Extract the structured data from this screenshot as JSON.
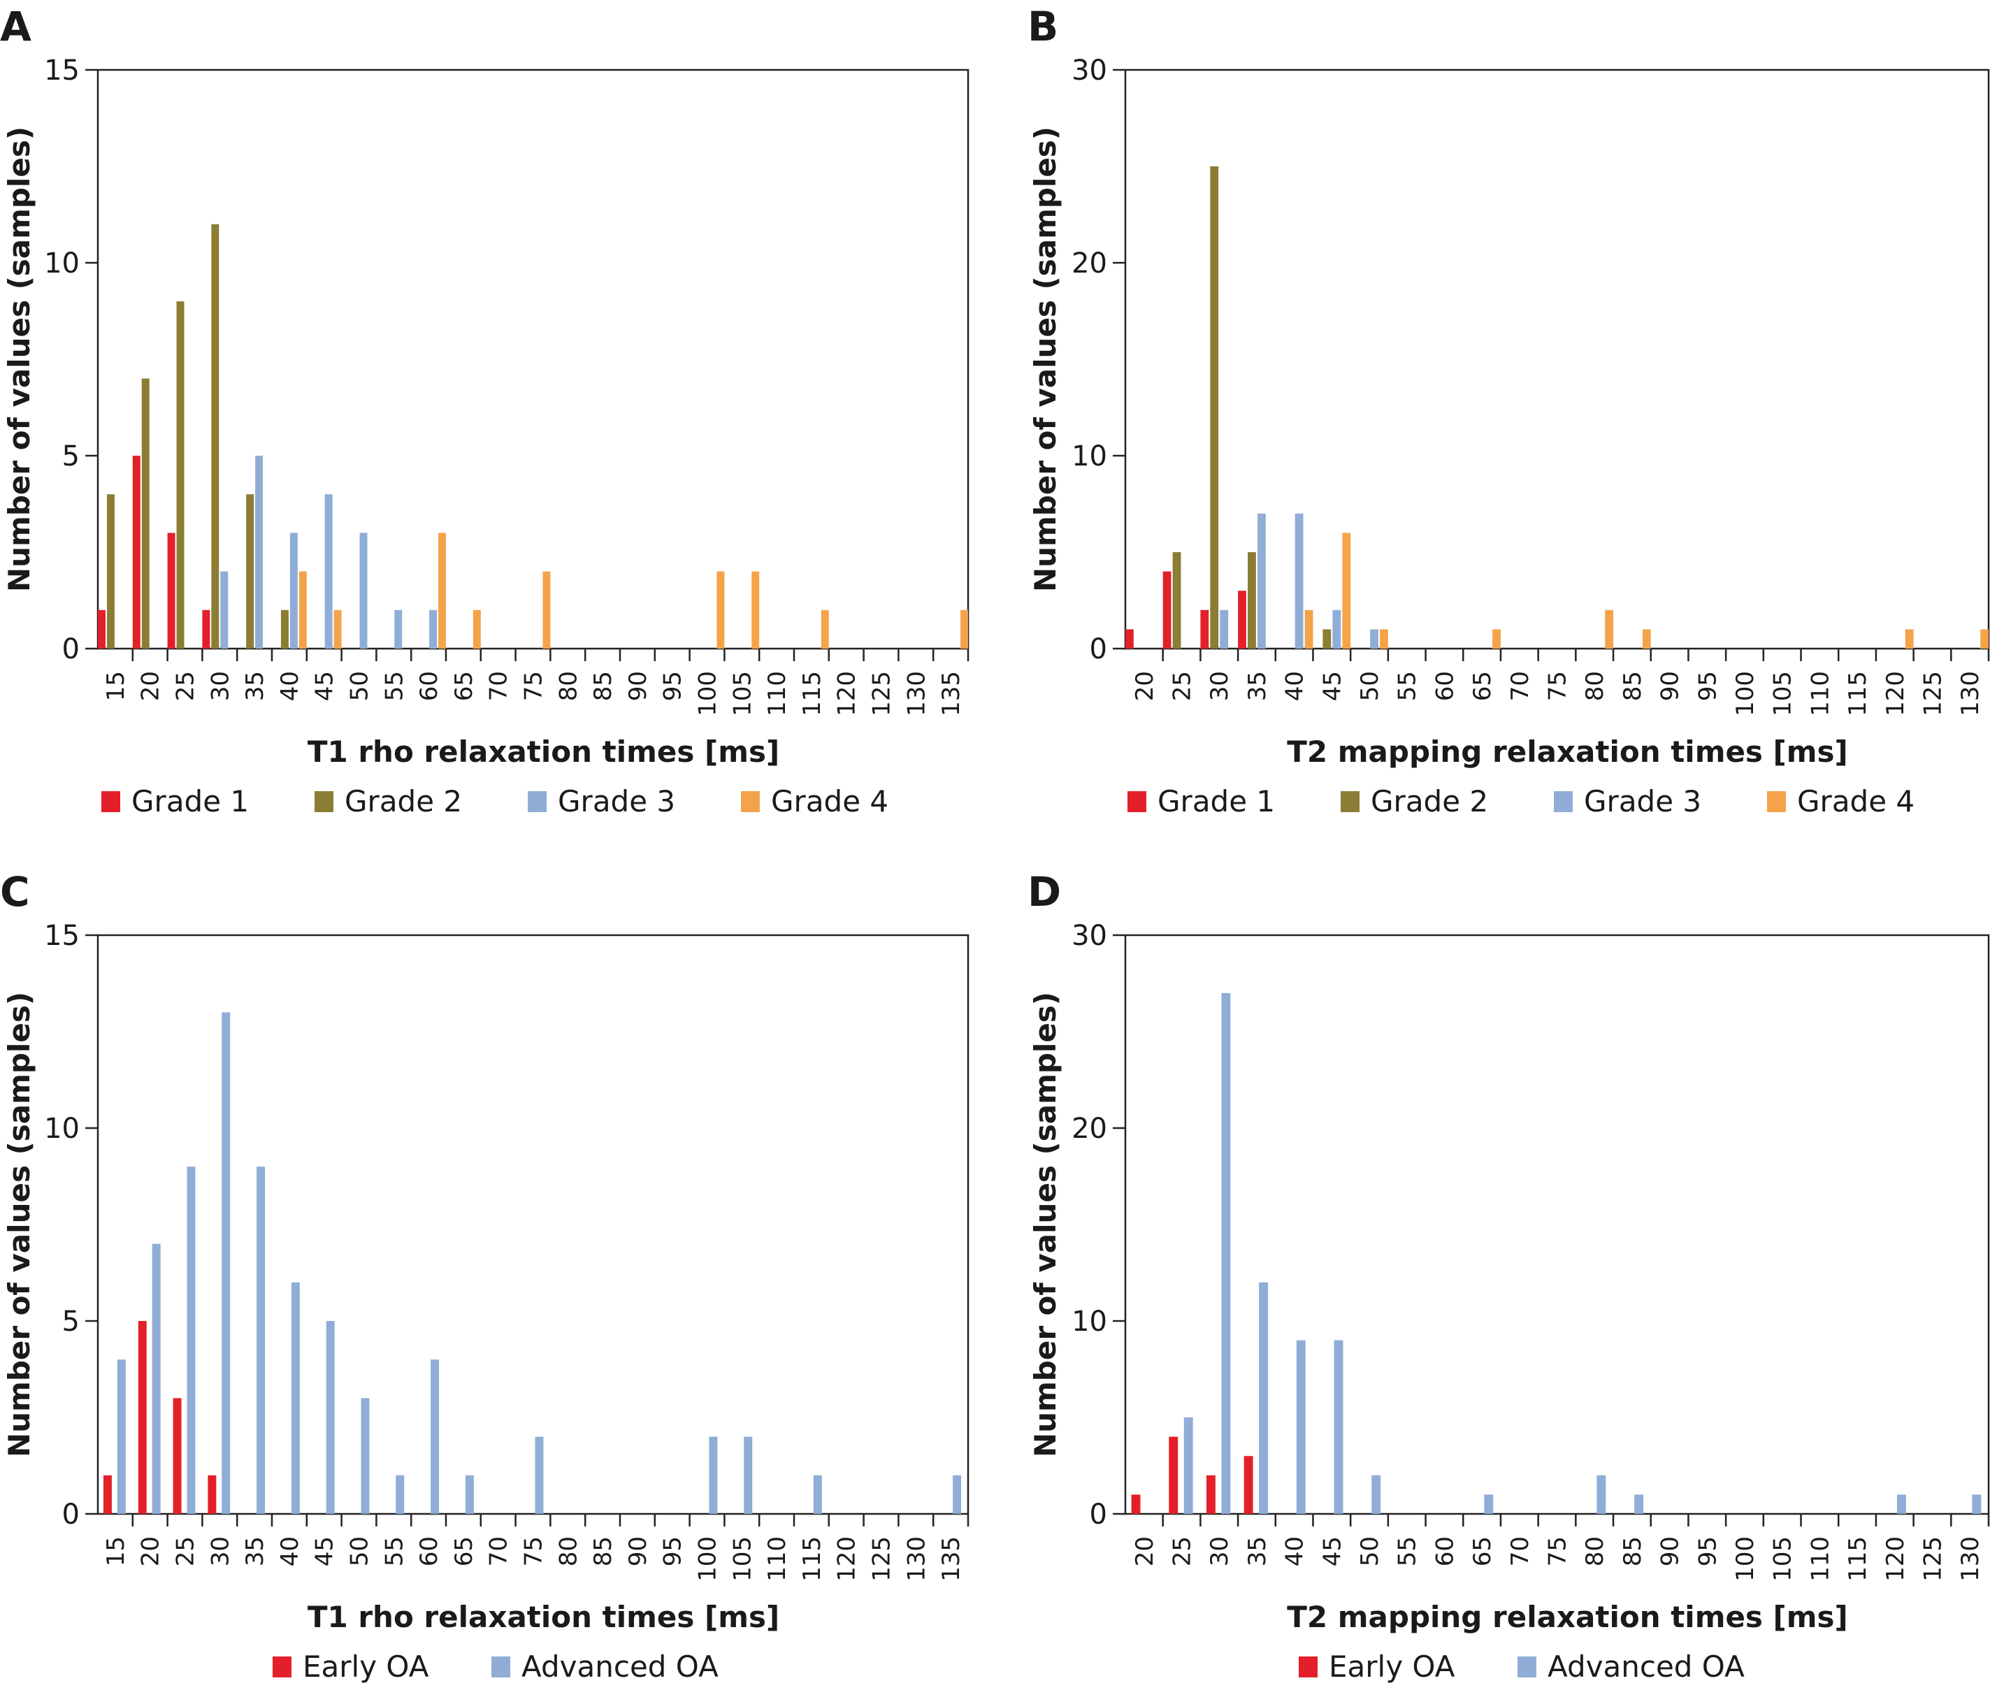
{
  "chart_data": [
    {
      "panel": "A",
      "type": "bar",
      "categories": [
        "15",
        "20",
        "25",
        "30",
        "35",
        "40",
        "45",
        "50",
        "55",
        "60",
        "65",
        "70",
        "75",
        "80",
        "85",
        "90",
        "95",
        "100",
        "105",
        "110",
        "115",
        "120",
        "125",
        "130",
        "135"
      ],
      "ylabel": "Number of values (samples)",
      "xlabel": "T1 rho relaxation times [ms]",
      "ylim": [
        0,
        15
      ],
      "yticks": [
        "0",
        "5",
        "10",
        "15"
      ],
      "legend_position": "bottom",
      "series": [
        {
          "name": "Grade 1",
          "color": "#e3202a",
          "values": [
            1,
            5,
            3,
            1,
            0,
            0,
            0,
            0,
            0,
            0,
            0,
            0,
            0,
            0,
            0,
            0,
            0,
            0,
            0,
            0,
            0,
            0,
            0,
            0,
            0
          ]
        },
        {
          "name": "Grade 2",
          "color": "#8b7d33",
          "values": [
            4,
            7,
            9,
            11,
            4,
            1,
            0,
            0,
            0,
            0,
            0,
            0,
            0,
            0,
            0,
            0,
            0,
            0,
            0,
            0,
            0,
            0,
            0,
            0,
            0
          ]
        },
        {
          "name": "Grade 3",
          "color": "#8fadd6",
          "values": [
            0,
            0,
            0,
            2,
            5,
            3,
            4,
            3,
            1,
            1,
            0,
            0,
            0,
            0,
            0,
            0,
            0,
            0,
            0,
            0,
            0,
            0,
            0,
            0,
            0
          ]
        },
        {
          "name": "Grade 4",
          "color": "#f5a34a",
          "values": [
            0,
            0,
            0,
            0,
            0,
            2,
            1,
            0,
            0,
            3,
            1,
            0,
            2,
            0,
            0,
            0,
            0,
            2,
            2,
            0,
            1,
            0,
            0,
            0,
            1
          ]
        }
      ]
    },
    {
      "panel": "B",
      "type": "bar",
      "categories": [
        "20",
        "25",
        "30",
        "35",
        "40",
        "45",
        "50",
        "55",
        "60",
        "65",
        "70",
        "75",
        "80",
        "85",
        "90",
        "95",
        "100",
        "105",
        "110",
        "115",
        "120",
        "125",
        "130"
      ],
      "ylabel": "Number of values (samples)",
      "xlabel": "T2 mapping relaxation times [ms]",
      "ylim": [
        0,
        30
      ],
      "yticks": [
        "0",
        "10",
        "20",
        "30"
      ],
      "legend_position": "bottom",
      "series": [
        {
          "name": "Grade 1",
          "color": "#e3202a",
          "values": [
            1,
            4,
            2,
            3,
            0,
            0,
            0,
            0,
            0,
            0,
            0,
            0,
            0,
            0,
            0,
            0,
            0,
            0,
            0,
            0,
            0,
            0,
            0
          ]
        },
        {
          "name": "Grade 2",
          "color": "#8b7d33",
          "values": [
            0,
            5,
            25,
            5,
            0,
            1,
            0,
            0,
            0,
            0,
            0,
            0,
            0,
            0,
            0,
            0,
            0,
            0,
            0,
            0,
            0,
            0,
            0
          ]
        },
        {
          "name": "Grade 3",
          "color": "#8fadd6",
          "values": [
            0,
            0,
            2,
            7,
            7,
            2,
            1,
            0,
            0,
            0,
            0,
            0,
            0,
            0,
            0,
            0,
            0,
            0,
            0,
            0,
            0,
            0,
            0
          ]
        },
        {
          "name": "Grade 4",
          "color": "#f5a34a",
          "values": [
            0,
            0,
            0,
            0,
            2,
            6,
            1,
            0,
            0,
            1,
            0,
            0,
            2,
            1,
            0,
            0,
            0,
            0,
            0,
            0,
            1,
            0,
            1
          ]
        }
      ]
    },
    {
      "panel": "C",
      "type": "bar",
      "categories": [
        "15",
        "20",
        "25",
        "30",
        "35",
        "40",
        "45",
        "50",
        "55",
        "60",
        "65",
        "70",
        "75",
        "80",
        "85",
        "90",
        "95",
        "100",
        "105",
        "110",
        "115",
        "120",
        "125",
        "130",
        "135"
      ],
      "ylabel": "Number of values (samples)",
      "xlabel": "T1 rho relaxation times [ms]",
      "ylim": [
        0,
        15
      ],
      "yticks": [
        "0",
        "5",
        "10",
        "15"
      ],
      "legend_position": "bottom",
      "series": [
        {
          "name": "Early OA",
          "color": "#e3202a",
          "values": [
            1,
            5,
            3,
            1,
            0,
            0,
            0,
            0,
            0,
            0,
            0,
            0,
            0,
            0,
            0,
            0,
            0,
            0,
            0,
            0,
            0,
            0,
            0,
            0,
            0
          ]
        },
        {
          "name": "Advanced OA",
          "color": "#8fadd6",
          "values": [
            4,
            7,
            9,
            13,
            9,
            6,
            5,
            3,
            1,
            4,
            1,
            0,
            2,
            0,
            0,
            0,
            0,
            2,
            2,
            0,
            1,
            0,
            0,
            0,
            1
          ]
        }
      ]
    },
    {
      "panel": "D",
      "type": "bar",
      "categories": [
        "20",
        "25",
        "30",
        "35",
        "40",
        "45",
        "50",
        "55",
        "60",
        "65",
        "70",
        "75",
        "80",
        "85",
        "90",
        "95",
        "100",
        "105",
        "110",
        "115",
        "120",
        "125",
        "130"
      ],
      "ylabel": "Number of values (samples)",
      "xlabel": "T2 mapping relaxation times [ms]",
      "ylim": [
        0,
        30
      ],
      "yticks": [
        "0",
        "10",
        "20",
        "30"
      ],
      "legend_position": "bottom",
      "series": [
        {
          "name": "Early OA",
          "color": "#e3202a",
          "values": [
            1,
            4,
            2,
            3,
            0,
            0,
            0,
            0,
            0,
            0,
            0,
            0,
            0,
            0,
            0,
            0,
            0,
            0,
            0,
            0,
            0,
            0,
            0
          ]
        },
        {
          "name": "Advanced OA",
          "color": "#8fadd6",
          "values": [
            0,
            5,
            27,
            12,
            9,
            9,
            2,
            0,
            0,
            1,
            0,
            0,
            2,
            1,
            0,
            0,
            0,
            0,
            0,
            0,
            1,
            0,
            1
          ]
        }
      ]
    }
  ]
}
